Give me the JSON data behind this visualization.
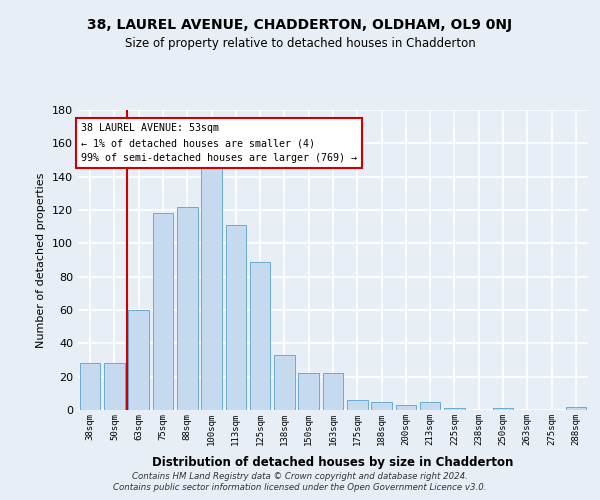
{
  "title": "38, LAUREL AVENUE, CHADDERTON, OLDHAM, OL9 0NJ",
  "subtitle": "Size of property relative to detached houses in Chadderton",
  "xlabel": "Distribution of detached houses by size in Chadderton",
  "ylabel": "Number of detached properties",
  "categories": [
    "38sqm",
    "50sqm",
    "63sqm",
    "75sqm",
    "88sqm",
    "100sqm",
    "113sqm",
    "125sqm",
    "138sqm",
    "150sqm",
    "163sqm",
    "175sqm",
    "188sqm",
    "200sqm",
    "213sqm",
    "225sqm",
    "238sqm",
    "250sqm",
    "263sqm",
    "275sqm",
    "288sqm"
  ],
  "values": [
    28,
    28,
    60,
    118,
    122,
    147,
    111,
    89,
    33,
    22,
    22,
    6,
    5,
    3,
    5,
    1,
    0,
    1,
    0,
    0,
    2
  ],
  "bar_color": "#c5d9ef",
  "bar_edge_color": "#6aaad4",
  "annotation_text_line1": "38 LAUREL AVENUE: 53sqm",
  "annotation_text_line2": "← 1% of detached houses are smaller (4)",
  "annotation_text_line3": "99% of semi-detached houses are larger (769) →",
  "annotation_box_color": "#ffffff",
  "annotation_border_color": "#cc0000",
  "vline_color": "#cc0000",
  "vline_x": 1.5,
  "ylim": [
    0,
    180
  ],
  "yticks": [
    0,
    20,
    40,
    60,
    80,
    100,
    120,
    140,
    160,
    180
  ],
  "background_color": "#e8eef6",
  "grid_color": "#ffffff",
  "footer_line1": "Contains HM Land Registry data © Crown copyright and database right 2024.",
  "footer_line2": "Contains public sector information licensed under the Open Government Licence v3.0."
}
